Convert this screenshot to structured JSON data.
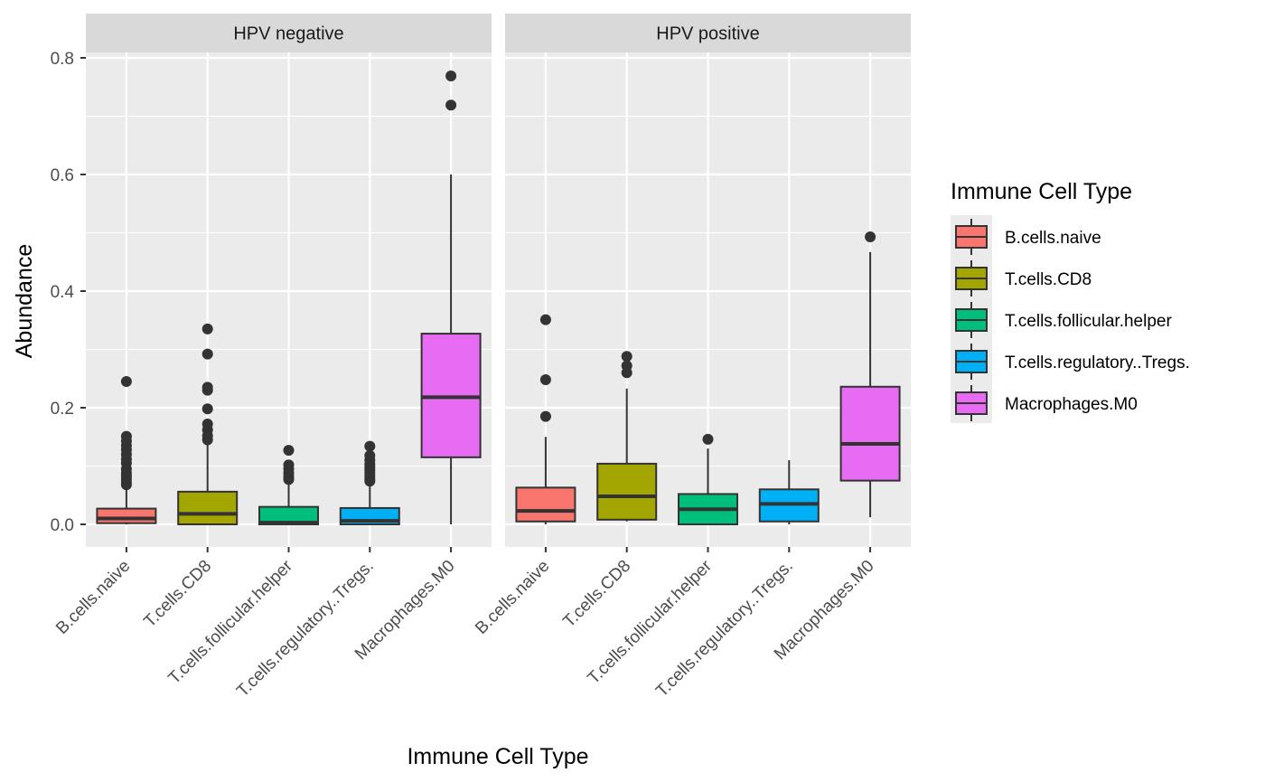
{
  "chart_data": {
    "type": "boxplot",
    "xlabel": "Immune Cell Type",
    "ylabel": "Abundance",
    "ylim": [
      -0.04,
      0.85
    ],
    "yticks": [
      0.0,
      0.2,
      0.4,
      0.6,
      0.8
    ],
    "ytick_labels": [
      "0.0",
      "0.2",
      "0.4",
      "0.6",
      "0.8"
    ],
    "grid": true,
    "legend_position": "right",
    "legend": {
      "title": "Immune Cell Type",
      "entries": [
        "B.cells.naive",
        "T.cells.CD8",
        "T.cells.follicular.helper",
        "T.cells.regulatory..Tregs.",
        "Macrophages.M0"
      ]
    },
    "categories": [
      "B.cells.naive",
      "T.cells.CD8",
      "T.cells.follicular.helper",
      "T.cells.regulatory..Tregs.",
      "Macrophages.M0"
    ],
    "colors": [
      "#F8766D",
      "#A3A500",
      "#00BF7D",
      "#00B0F6",
      "#E76BF3"
    ],
    "panels": [
      {
        "label": "HPV negative",
        "boxes": [
          {
            "category": "B.cells.naive",
            "min": 0.0,
            "q1": 0.002,
            "median": 0.01,
            "q3": 0.027,
            "max": 0.065,
            "outliers": [
              0.068,
              0.072,
              0.078,
              0.083,
              0.088,
              0.095,
              0.105,
              0.112,
              0.12,
              0.128,
              0.135,
              0.143,
              0.151,
              0.245
            ]
          },
          {
            "category": "T.cells.CD8",
            "min": 0.0,
            "q1": 0.0,
            "median": 0.018,
            "q3": 0.056,
            "max": 0.14,
            "outliers": [
              0.145,
              0.152,
              0.162,
              0.172,
              0.198,
              0.23,
              0.235,
              0.292,
              0.335
            ]
          },
          {
            "category": "T.cells.follicular.helper",
            "min": 0.0,
            "q1": 0.0,
            "median": 0.003,
            "q3": 0.03,
            "max": 0.072,
            "outliers": [
              0.077,
              0.082,
              0.088,
              0.095,
              0.102,
              0.127
            ]
          },
          {
            "category": "T.cells.regulatory..Tregs.",
            "min": 0.0,
            "q1": 0.0,
            "median": 0.006,
            "q3": 0.028,
            "max": 0.07,
            "outliers": [
              0.074,
              0.078,
              0.083,
              0.088,
              0.093,
              0.098,
              0.103,
              0.11,
              0.118,
              0.134
            ]
          },
          {
            "category": "Macrophages.M0",
            "min": 0.0,
            "q1": 0.115,
            "median": 0.218,
            "q3": 0.327,
            "max": 0.6,
            "outliers": [
              0.719,
              0.769
            ]
          }
        ]
      },
      {
        "label": "HPV positive",
        "boxes": [
          {
            "category": "B.cells.naive",
            "min": 0.0,
            "q1": 0.005,
            "median": 0.023,
            "q3": 0.063,
            "max": 0.15,
            "outliers": [
              0.185,
              0.248,
              0.351
            ]
          },
          {
            "category": "T.cells.CD8",
            "min": 0.005,
            "q1": 0.008,
            "median": 0.048,
            "q3": 0.104,
            "max": 0.233,
            "outliers": [
              0.26,
              0.272,
              0.288
            ]
          },
          {
            "category": "T.cells.follicular.helper",
            "min": 0.0,
            "q1": 0.0,
            "median": 0.026,
            "q3": 0.052,
            "max": 0.13,
            "outliers": [
              0.146
            ]
          },
          {
            "category": "T.cells.regulatory..Tregs.",
            "min": 0.0,
            "q1": 0.005,
            "median": 0.035,
            "q3": 0.06,
            "max": 0.11,
            "outliers": []
          },
          {
            "category": "Macrophages.M0",
            "min": 0.012,
            "q1": 0.075,
            "median": 0.138,
            "q3": 0.236,
            "max": 0.467,
            "outliers": [
              0.493
            ]
          }
        ]
      }
    ]
  }
}
